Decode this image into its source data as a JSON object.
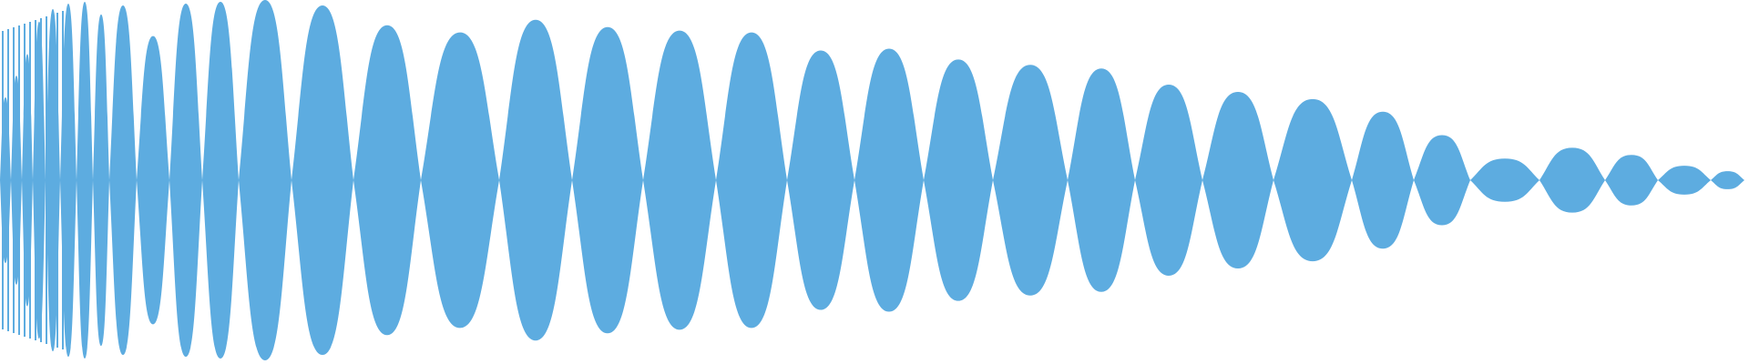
{
  "waveform": {
    "color": "#5DACE0",
    "background": "#FFFFFF",
    "lobes": [
      {
        "a": 0.46
      },
      {
        "a": 0.58
      },
      {
        "a": 0.7
      },
      {
        "a": 0.88
      },
      {
        "a": 0.95
      },
      {
        "a": 0.98
      },
      {
        "a": 0.99
      },
      {
        "a": 0.92
      },
      {
        "a": 0.97
      },
      {
        "a": 0.8
      },
      {
        "a": 0.98
      },
      {
        "a": 0.99
      },
      {
        "a": 1.0
      },
      {
        "a": 0.97
      },
      {
        "a": 0.86
      },
      {
        "a": 0.82
      },
      {
        "a": 0.89
      },
      {
        "a": 0.85
      },
      {
        "a": 0.83
      },
      {
        "a": 0.82
      },
      {
        "a": 0.72
      },
      {
        "a": 0.73
      },
      {
        "a": 0.67
      },
      {
        "a": 0.64
      },
      {
        "a": 0.62
      },
      {
        "a": 0.53
      },
      {
        "a": 0.49
      },
      {
        "a": 0.45
      },
      {
        "a": 0.38
      },
      {
        "a": 0.25
      },
      {
        "a": 0.12
      },
      {
        "a": 0.18
      },
      {
        "a": 0.14
      },
      {
        "a": 0.08
      },
      {
        "a": 0.05
      },
      {
        "a": 0.06
      }
    ]
  }
}
